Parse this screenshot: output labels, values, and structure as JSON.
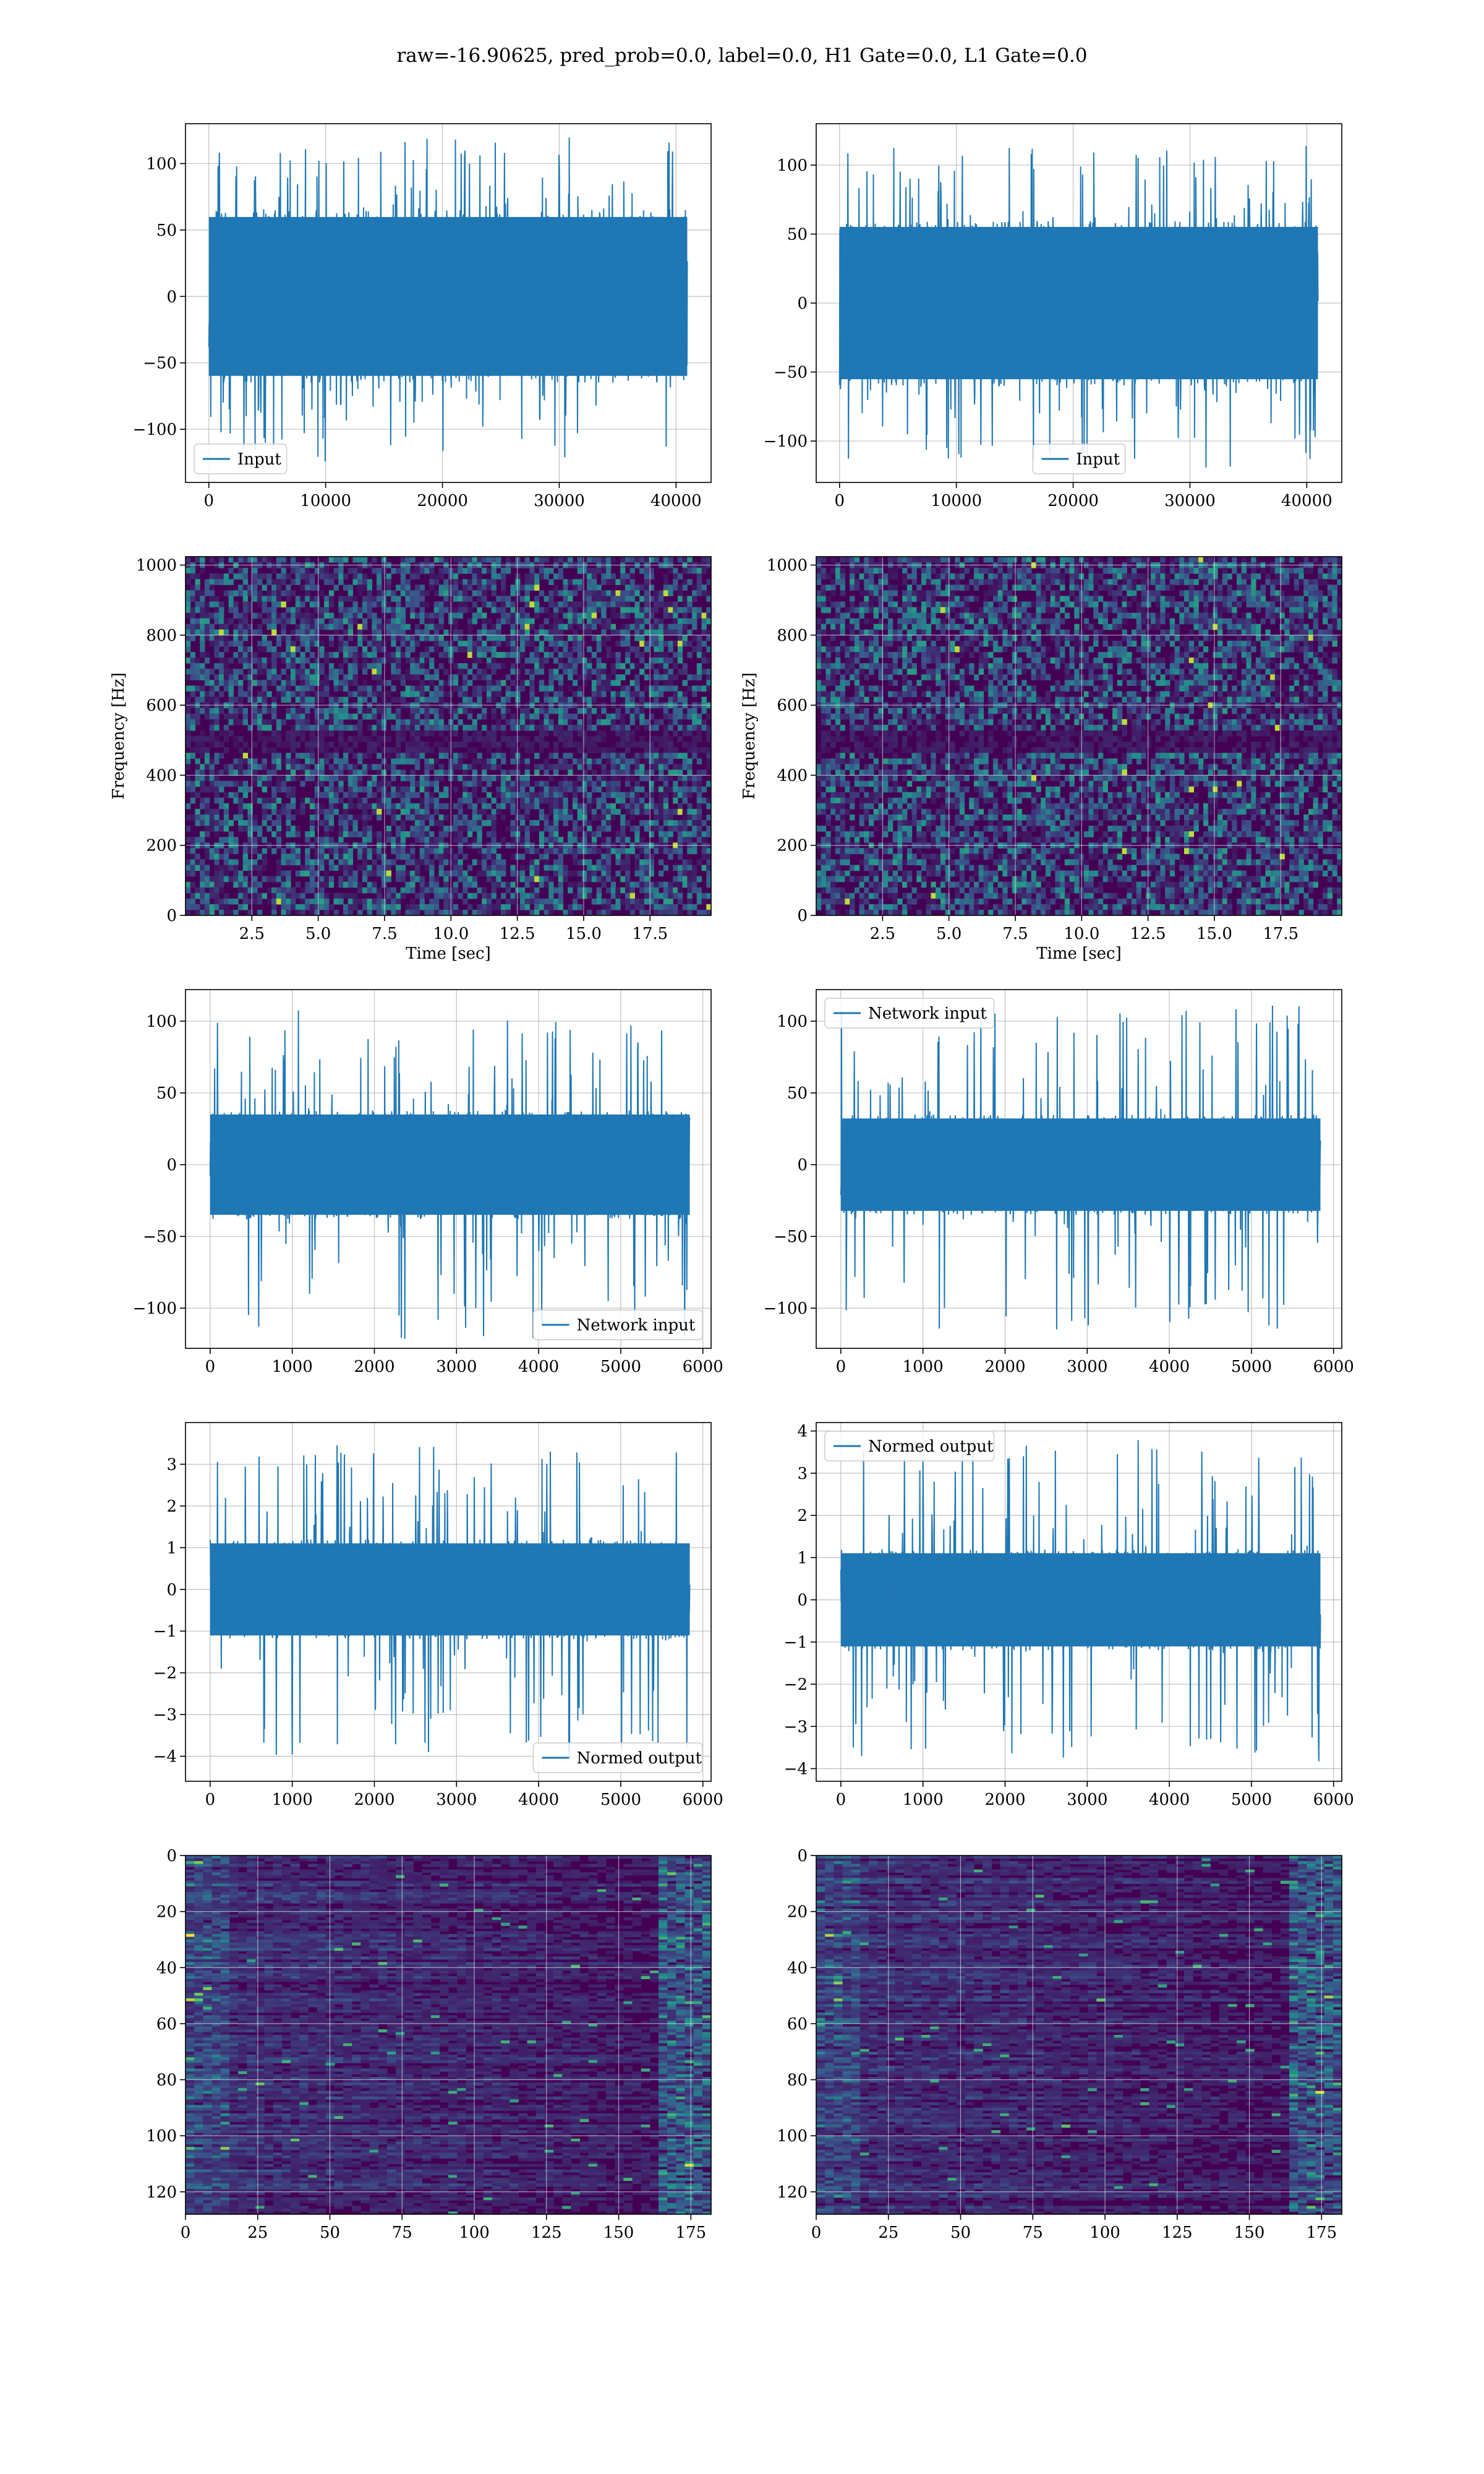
{
  "figure": {
    "suptitle": "raw=-16.90625, pred_prob=0.0, label=0.0, H1 Gate=0.0, L1 Gate=0.0"
  },
  "colors": {
    "line": "#1f77b4",
    "grid": "#b0b0b0",
    "viridis_low": "#440154",
    "viridis_mid": "#21918c",
    "viridis_high": "#fde725"
  },
  "chart_data": [
    {
      "id": "r0c0",
      "type": "line",
      "title": "",
      "xlabel": "",
      "ylabel": "",
      "xlim": [
        -2000,
        43000
      ],
      "ylim": [
        -140,
        130
      ],
      "xticks": [
        0,
        10000,
        20000,
        30000,
        40000
      ],
      "xtick_labels": [
        "0",
        "10000",
        "20000",
        "30000",
        "40000"
      ],
      "yticks": [
        -100,
        -50,
        0,
        50,
        100
      ],
      "ytick_labels": [
        "−100",
        "−50",
        "0",
        "50",
        "100"
      ],
      "legend": "lower-left",
      "series": [
        {
          "name": "Input",
          "n_samples": 40960,
          "x_range": [
            0,
            40960
          ],
          "band_approx": [
            -65,
            65
          ],
          "peak_approx": [
            -125,
            120
          ]
        }
      ]
    },
    {
      "id": "r0c1",
      "type": "line",
      "title": "",
      "xlabel": "",
      "ylabel": "",
      "xlim": [
        -2000,
        43000
      ],
      "ylim": [
        -130,
        130
      ],
      "xticks": [
        0,
        10000,
        20000,
        30000,
        40000
      ],
      "xtick_labels": [
        "0",
        "10000",
        "20000",
        "30000",
        "40000"
      ],
      "yticks": [
        -100,
        -50,
        0,
        50,
        100
      ],
      "ytick_labels": [
        "−100",
        "−50",
        "0",
        "50",
        "100"
      ],
      "legend": "lower-center",
      "series": [
        {
          "name": "Input",
          "n_samples": 40960,
          "x_range": [
            0,
            40960
          ],
          "band_approx": [
            -60,
            60
          ],
          "peak_approx": [
            -120,
            120
          ]
        }
      ]
    },
    {
      "id": "r1c0",
      "type": "heatmap",
      "title": "",
      "xlabel": "Time [sec]",
      "ylabel": "Frequency [Hz]",
      "xlim": [
        0,
        19.8
      ],
      "ylim": [
        0,
        1024
      ],
      "xticks": [
        2.5,
        5.0,
        7.5,
        10.0,
        12.5,
        15.0,
        17.5
      ],
      "xtick_labels": [
        "2.5",
        "5.0",
        "7.5",
        "10.0",
        "12.5",
        "15.0",
        "17.5"
      ],
      "yticks": [
        0,
        200,
        400,
        600,
        800,
        1000
      ],
      "ytick_labels": [
        "0",
        "200",
        "400",
        "600",
        "800",
        "1000"
      ],
      "colormap": "viridis",
      "dark_band_hz": [
        480,
        520
      ]
    },
    {
      "id": "r1c1",
      "type": "heatmap",
      "title": "",
      "xlabel": "Time [sec]",
      "ylabel": "Frequency [Hz]",
      "xlim": [
        0,
        19.8
      ],
      "ylim": [
        0,
        1024
      ],
      "xticks": [
        2.5,
        5.0,
        7.5,
        10.0,
        12.5,
        15.0,
        17.5
      ],
      "xtick_labels": [
        "2.5",
        "5.0",
        "7.5",
        "10.0",
        "12.5",
        "15.0",
        "17.5"
      ],
      "yticks": [
        0,
        200,
        400,
        600,
        800,
        1000
      ],
      "ytick_labels": [
        "0",
        "200",
        "400",
        "600",
        "800",
        "1000"
      ],
      "colormap": "viridis",
      "dark_band_hz": [
        480,
        520
      ]
    },
    {
      "id": "r2c0",
      "type": "line",
      "title": "",
      "xlabel": "",
      "ylabel": "",
      "xlim": [
        -300,
        6100
      ],
      "ylim": [
        -128,
        122
      ],
      "xticks": [
        0,
        1000,
        2000,
        3000,
        4000,
        5000,
        6000
      ],
      "xtick_labels": [
        "0",
        "1000",
        "2000",
        "3000",
        "4000",
        "5000",
        "6000"
      ],
      "yticks": [
        -100,
        -50,
        0,
        50,
        100
      ],
      "ytick_labels": [
        "−100",
        "−50",
        "0",
        "50",
        "100"
      ],
      "legend": "lower-right",
      "series": [
        {
          "name": "Network input",
          "n_samples": 5840,
          "x_range": [
            0,
            5840
          ],
          "band_approx": [
            -38,
            38
          ],
          "peak_approx": [
            -122,
            108
          ]
        }
      ]
    },
    {
      "id": "r2c1",
      "type": "line",
      "title": "",
      "xlabel": "",
      "ylabel": "",
      "xlim": [
        -300,
        6100
      ],
      "ylim": [
        -128,
        122
      ],
      "xticks": [
        0,
        1000,
        2000,
        3000,
        4000,
        5000,
        6000
      ],
      "xtick_labels": [
        "0",
        "1000",
        "2000",
        "3000",
        "4000",
        "5000",
        "6000"
      ],
      "yticks": [
        -100,
        -50,
        0,
        50,
        100
      ],
      "ytick_labels": [
        "−100",
        "−50",
        "0",
        "50",
        "100"
      ],
      "legend": "upper-left",
      "series": [
        {
          "name": "Network input",
          "n_samples": 5840,
          "x_range": [
            0,
            5840
          ],
          "band_approx": [
            -35,
            35
          ],
          "peak_approx": [
            -115,
            112
          ]
        }
      ]
    },
    {
      "id": "r3c0",
      "type": "line",
      "title": "",
      "xlabel": "",
      "ylabel": "",
      "xlim": [
        -300,
        6100
      ],
      "ylim": [
        -4.6,
        4.0
      ],
      "xticks": [
        0,
        1000,
        2000,
        3000,
        4000,
        5000,
        6000
      ],
      "xtick_labels": [
        "0",
        "1000",
        "2000",
        "3000",
        "4000",
        "5000",
        "6000"
      ],
      "yticks": [
        -4,
        -3,
        -2,
        -1,
        0,
        1,
        2,
        3
      ],
      "ytick_labels": [
        "−4",
        "−3",
        "−2",
        "−1",
        "0",
        "1",
        "2",
        "3"
      ],
      "legend": "lower-right",
      "series": [
        {
          "name": "Normed output",
          "n_samples": 5840,
          "x_range": [
            0,
            5840
          ],
          "band_approx": [
            -1.2,
            1.2
          ],
          "peak_approx": [
            -4.1,
            3.5
          ]
        }
      ]
    },
    {
      "id": "r3c1",
      "type": "line",
      "title": "",
      "xlabel": "",
      "ylabel": "",
      "xlim": [
        -300,
        6100
      ],
      "ylim": [
        -4.3,
        4.2
      ],
      "xticks": [
        0,
        1000,
        2000,
        3000,
        4000,
        5000,
        6000
      ],
      "xtick_labels": [
        "0",
        "1000",
        "2000",
        "3000",
        "4000",
        "5000",
        "6000"
      ],
      "yticks": [
        -4,
        -3,
        -2,
        -1,
        0,
        1,
        2,
        3,
        4
      ],
      "ytick_labels": [
        "−4",
        "−3",
        "−2",
        "−1",
        "0",
        "1",
        "2",
        "3",
        "4"
      ],
      "legend": "upper-left",
      "series": [
        {
          "name": "Normed output",
          "n_samples": 5840,
          "x_range": [
            0,
            5840
          ],
          "band_approx": [
            -1.2,
            1.2
          ],
          "peak_approx": [
            -3.9,
            3.8
          ]
        }
      ]
    },
    {
      "id": "r4c0",
      "type": "heatmap",
      "title": "",
      "xlabel": "",
      "ylabel": "",
      "xlim": [
        0,
        182
      ],
      "ylim": [
        128,
        0
      ],
      "xticks": [
        0,
        25,
        50,
        75,
        100,
        125,
        150,
        175
      ],
      "xtick_labels": [
        "0",
        "25",
        "50",
        "75",
        "100",
        "125",
        "150",
        "175"
      ],
      "yticks": [
        0,
        20,
        40,
        60,
        80,
        100,
        120
      ],
      "ytick_labels": [
        "0",
        "20",
        "40",
        "60",
        "80",
        "100",
        "120"
      ],
      "colormap": "viridis",
      "n_rows": 128,
      "n_cols": 182
    },
    {
      "id": "r4c1",
      "type": "heatmap",
      "title": "",
      "xlabel": "",
      "ylabel": "",
      "xlim": [
        0,
        182
      ],
      "ylim": [
        128,
        0
      ],
      "xticks": [
        0,
        25,
        50,
        75,
        100,
        125,
        150,
        175
      ],
      "xtick_labels": [
        "0",
        "25",
        "50",
        "75",
        "100",
        "125",
        "150",
        "175"
      ],
      "yticks": [
        0,
        20,
        40,
        60,
        80,
        100,
        120
      ],
      "ytick_labels": [
        "0",
        "20",
        "40",
        "60",
        "80",
        "100",
        "120"
      ],
      "colormap": "viridis",
      "n_rows": 128,
      "n_cols": 182
    }
  ]
}
